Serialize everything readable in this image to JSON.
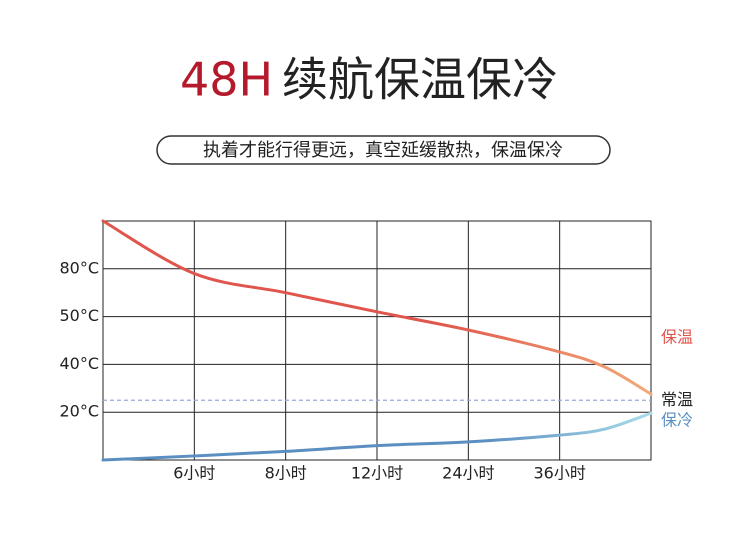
{
  "header": {
    "title_accent": "48H",
    "title": "续航保温保冷",
    "subtitle": "执着才能行得更远，真空延缓散热，保温保冷"
  },
  "chart_data": {
    "type": "line",
    "x": [
      0,
      6,
      8,
      12,
      24,
      36,
      42,
      48
    ],
    "xlim": [
      0,
      48
    ],
    "xticks": [
      {
        "value": 6,
        "label": "6小时"
      },
      {
        "value": 8,
        "label": "8小时"
      },
      {
        "value": 12,
        "label": "12小时"
      },
      {
        "value": 24,
        "label": "24小时"
      },
      {
        "value": 36,
        "label": "36小时"
      }
    ],
    "ylim": [
      0,
      105
    ],
    "yticks": [
      {
        "value": 20,
        "label": "20°C"
      },
      {
        "value": 40,
        "label": "40°C"
      },
      {
        "value": 50,
        "label": "50°C"
      },
      {
        "value": 80,
        "label": "80°C"
      }
    ],
    "grid": true,
    "reference_line": {
      "value": 25,
      "label": "常温",
      "color": "#9aa8d8"
    },
    "series": [
      {
        "name": "保温",
        "color": [
          "#e0554c",
          "#f2aa78"
        ],
        "values": [
          105,
          77,
          65,
          53,
          47.2,
          42.6,
          38.8,
          27.6
        ]
      },
      {
        "name": "保冷",
        "color": [
          "#5b8fc2",
          "#a9dde8"
        ],
        "values": [
          0,
          1.7,
          3.6,
          6,
          7.6,
          10.4,
          13,
          19.6
        ]
      }
    ]
  }
}
